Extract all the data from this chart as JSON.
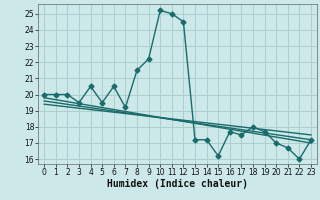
{
  "xlabel": "Humidex (Indice chaleur)",
  "x_values": [
    0,
    1,
    2,
    3,
    4,
    5,
    6,
    7,
    8,
    9,
    10,
    11,
    12,
    13,
    14,
    15,
    16,
    17,
    18,
    19,
    20,
    21,
    22,
    23
  ],
  "y_values": [
    20,
    20,
    20,
    19.5,
    20.5,
    19.5,
    20.5,
    19.2,
    21.5,
    22.2,
    25.2,
    25,
    24.5,
    17.2,
    17.2,
    16.2,
    17.7,
    17.5,
    18,
    17.7,
    17,
    16.7,
    16,
    17.2
  ],
  "trend_lines": [
    {
      "x0": 0,
      "y0": 19.8,
      "x1": 23,
      "y1": 17.0
    },
    {
      "x0": 0,
      "y0": 19.6,
      "x1": 23,
      "y1": 17.2
    },
    {
      "x0": 0,
      "y0": 19.4,
      "x1": 23,
      "y1": 17.5
    }
  ],
  "ylim": [
    15.7,
    25.6
  ],
  "xlim": [
    -0.5,
    23.5
  ],
  "yticks": [
    16,
    17,
    18,
    19,
    20,
    21,
    22,
    23,
    24,
    25
  ],
  "xticks": [
    0,
    1,
    2,
    3,
    4,
    5,
    6,
    7,
    8,
    9,
    10,
    11,
    12,
    13,
    14,
    15,
    16,
    17,
    18,
    19,
    20,
    21,
    22,
    23
  ],
  "line_color": "#1a6b6b",
  "bg_color": "#cce8e8",
  "grid_color": "#aacfcf",
  "marker": "D",
  "marker_size": 2.5,
  "line_width": 1.0,
  "tick_fontsize": 5.5,
  "xlabel_fontsize": 7.0
}
